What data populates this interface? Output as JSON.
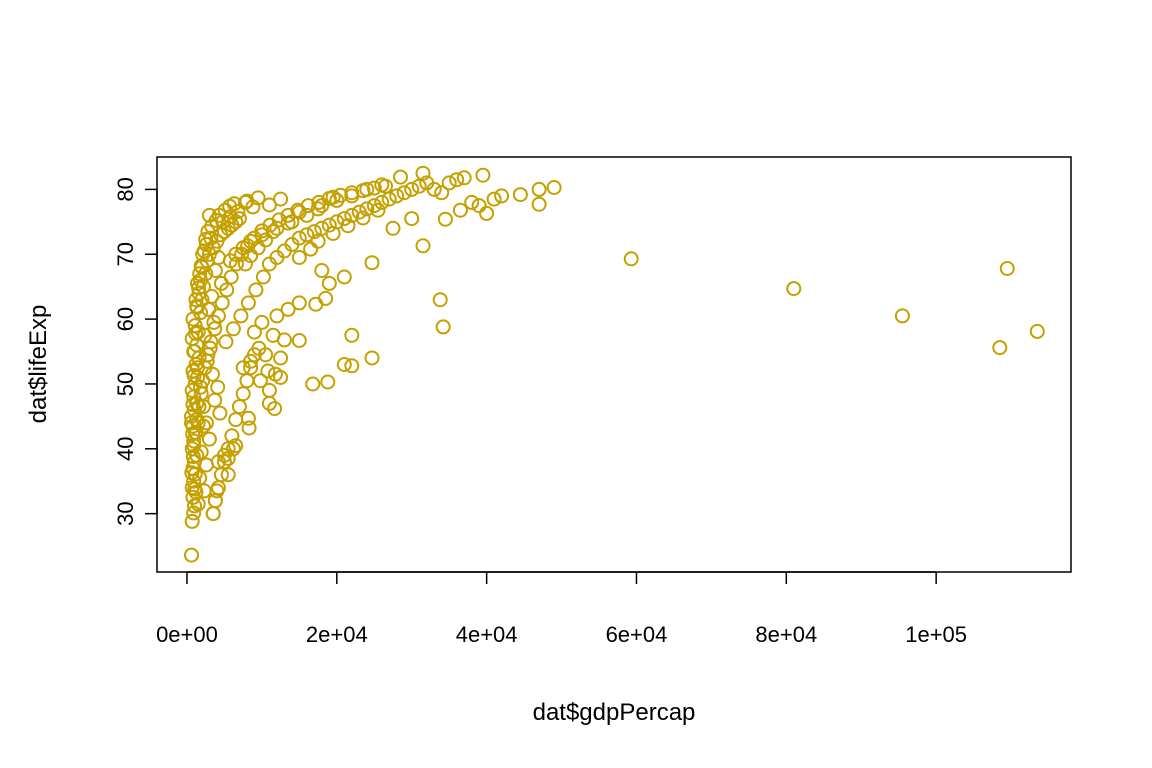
{
  "chart_data": {
    "type": "scatter",
    "title": "",
    "xlabel": "dat$gdpPercap",
    "ylabel": "dat$lifeExp",
    "xlim": [
      -4000,
      118000
    ],
    "ylim": [
      21,
      85
    ],
    "grid": false,
    "legend": "none",
    "color": "#C4A000",
    "x_ticks": [
      {
        "value": 0,
        "label": "0e+00"
      },
      {
        "value": 20000,
        "label": "2e+04"
      },
      {
        "value": 40000,
        "label": "4e+04"
      },
      {
        "value": 60000,
        "label": "6e+04"
      },
      {
        "value": 80000,
        "label": "8e+04"
      },
      {
        "value": 100000,
        "label": "1e+05"
      }
    ],
    "y_ticks": [
      {
        "value": 30,
        "label": "30"
      },
      {
        "value": 40,
        "label": "40"
      },
      {
        "value": 50,
        "label": "50"
      },
      {
        "value": 60,
        "label": "60"
      },
      {
        "value": 70,
        "label": "70"
      },
      {
        "value": 80,
        "label": "80"
      }
    ],
    "points": [
      [
        600,
        23.6
      ],
      [
        700,
        28.8
      ],
      [
        900,
        30.1
      ],
      [
        1000,
        31.2
      ],
      [
        800,
        32.5
      ],
      [
        1200,
        33.3
      ],
      [
        700,
        34.0
      ],
      [
        900,
        35.0
      ],
      [
        1100,
        36.1
      ],
      [
        800,
        37.0
      ],
      [
        1000,
        38.0
      ],
      [
        1300,
        39.0
      ],
      [
        700,
        40.0
      ],
      [
        900,
        41.2
      ],
      [
        1200,
        42.5
      ],
      [
        800,
        43.5
      ],
      [
        1500,
        44.0
      ],
      [
        600,
        45.0
      ],
      [
        1000,
        46.0
      ],
      [
        1300,
        47.0
      ],
      [
        900,
        48.0
      ],
      [
        700,
        49.0
      ],
      [
        1100,
        50.0
      ],
      [
        1400,
        51.0
      ],
      [
        800,
        52.0
      ],
      [
        1200,
        53.0
      ],
      [
        1600,
        54.0
      ],
      [
        900,
        55.0
      ],
      [
        1300,
        56.0
      ],
      [
        700,
        57.0
      ],
      [
        1500,
        58.0
      ],
      [
        1100,
        59.0
      ],
      [
        800,
        60.0
      ],
      [
        1800,
        61.0
      ],
      [
        1300,
        62.0
      ],
      [
        2000,
        63.0
      ],
      [
        1600,
        64.0
      ],
      [
        2200,
        65.0
      ],
      [
        1800,
        66.0
      ],
      [
        2500,
        67.0
      ],
      [
        2000,
        68.0
      ],
      [
        2700,
        69.0
      ],
      [
        3000,
        70.0
      ],
      [
        2300,
        70.5
      ],
      [
        3500,
        71.0
      ],
      [
        2600,
        71.5
      ],
      [
        4000,
        72.0
      ],
      [
        3200,
        72.5
      ],
      [
        4500,
        73.0
      ],
      [
        5000,
        73.5
      ],
      [
        5500,
        74.0
      ],
      [
        6000,
        74.5
      ],
      [
        6500,
        75.0
      ],
      [
        7000,
        75.5
      ],
      [
        3000,
        76.0
      ],
      [
        4200,
        69.5
      ],
      [
        3800,
        67.5
      ],
      [
        4600,
        65.5
      ],
      [
        3300,
        63.5
      ],
      [
        2900,
        61.5
      ],
      [
        3600,
        59.5
      ],
      [
        2400,
        57.5
      ],
      [
        3100,
        55.5
      ],
      [
        2700,
        53.5
      ],
      [
        3400,
        51.5
      ],
      [
        4100,
        49.5
      ],
      [
        3700,
        47.5
      ],
      [
        4400,
        45.5
      ],
      [
        2200,
        43.5
      ],
      [
        3000,
        41.5
      ],
      [
        1900,
        39.5
      ],
      [
        2600,
        37.5
      ],
      [
        1700,
        35.5
      ],
      [
        2300,
        33.5
      ],
      [
        1500,
        31.5
      ],
      [
        3500,
        30.0
      ],
      [
        3800,
        32.0
      ],
      [
        4200,
        34.0
      ],
      [
        4600,
        36.0
      ],
      [
        5000,
        38.0
      ],
      [
        5500,
        40.0
      ],
      [
        6000,
        42.0
      ],
      [
        6500,
        44.5
      ],
      [
        7000,
        46.5
      ],
      [
        7500,
        48.5
      ],
      [
        8000,
        50.5
      ],
      [
        8500,
        52.5
      ],
      [
        9000,
        54.5
      ],
      [
        5200,
        56.5
      ],
      [
        6200,
        58.5
      ],
      [
        7200,
        60.5
      ],
      [
        8200,
        62.5
      ],
      [
        9200,
        64.5
      ],
      [
        10200,
        66.5
      ],
      [
        11000,
        68.5
      ],
      [
        12000,
        69.5
      ],
      [
        13000,
        70.5
      ],
      [
        14000,
        71.5
      ],
      [
        15000,
        72.5
      ],
      [
        16000,
        73.0
      ],
      [
        17000,
        73.5
      ],
      [
        18000,
        74.0
      ],
      [
        19000,
        74.5
      ],
      [
        20000,
        75.0
      ],
      [
        21000,
        75.5
      ],
      [
        22000,
        76.0
      ],
      [
        23000,
        76.5
      ],
      [
        24000,
        77.0
      ],
      [
        25000,
        77.5
      ],
      [
        26000,
        78.0
      ],
      [
        27000,
        78.5
      ],
      [
        28000,
        79.0
      ],
      [
        29000,
        79.5
      ],
      [
        30000,
        80.0
      ],
      [
        31000,
        80.5
      ],
      [
        32000,
        81.0
      ],
      [
        33000,
        80.0
      ],
      [
        34000,
        79.5
      ],
      [
        35000,
        81.0
      ],
      [
        36000,
        81.5
      ],
      [
        37000,
        81.8
      ],
      [
        38000,
        78.0
      ],
      [
        39000,
        77.5
      ],
      [
        40000,
        76.3
      ],
      [
        41000,
        78.5
      ],
      [
        42000,
        79.0
      ],
      [
        44500,
        79.2
      ],
      [
        47000,
        80.0
      ],
      [
        47000,
        77.7
      ],
      [
        49000,
        80.3
      ],
      [
        39500,
        82.2
      ],
      [
        31500,
        82.5
      ],
      [
        28500,
        81.9
      ],
      [
        26000,
        80.7
      ],
      [
        24000,
        80.0
      ],
      [
        22000,
        79.0
      ],
      [
        20000,
        78.3
      ],
      [
        18000,
        77.5
      ],
      [
        16000,
        76.0
      ],
      [
        14000,
        75.0
      ],
      [
        12000,
        74.0
      ],
      [
        10000,
        73.0
      ],
      [
        8500,
        72.0
      ],
      [
        7500,
        71.0
      ],
      [
        6500,
        70.0
      ],
      [
        5800,
        69.0
      ],
      [
        9500,
        78.7
      ],
      [
        8800,
        77.3
      ],
      [
        7800,
        78.0
      ],
      [
        6800,
        76.6
      ],
      [
        5800,
        75.8
      ],
      [
        4800,
        75.0
      ],
      [
        12500,
        78.5
      ],
      [
        11000,
        77.6
      ],
      [
        17500,
        77.0
      ],
      [
        19500,
        78.8
      ],
      [
        15000,
        76.5
      ],
      [
        13500,
        74.8
      ],
      [
        11500,
        73.5
      ],
      [
        10500,
        72.2
      ],
      [
        9500,
        71.0
      ],
      [
        8500,
        69.8
      ],
      [
        7800,
        68.5
      ],
      [
        30000,
        75.5
      ],
      [
        27500,
        74.0
      ],
      [
        25500,
        76.8
      ],
      [
        23500,
        75.6
      ],
      [
        21500,
        74.4
      ],
      [
        19500,
        73.2
      ],
      [
        17500,
        72.0
      ],
      [
        16500,
        70.8
      ],
      [
        15000,
        69.5
      ],
      [
        36500,
        76.8
      ],
      [
        34500,
        75.4
      ],
      [
        31500,
        71.3
      ],
      [
        24700,
        68.7
      ],
      [
        18000,
        67.5
      ],
      [
        21000,
        66.5
      ],
      [
        19000,
        65.5
      ],
      [
        17200,
        62.3
      ],
      [
        18500,
        63.2
      ],
      [
        15000,
        62.5
      ],
      [
        13500,
        61.5
      ],
      [
        12000,
        60.5
      ],
      [
        10000,
        59.5
      ],
      [
        9000,
        58.0
      ],
      [
        11500,
        57.5
      ],
      [
        13000,
        56.8
      ],
      [
        15000,
        56.7
      ],
      [
        22000,
        57.5
      ],
      [
        33800,
        63.0
      ],
      [
        34200,
        58.8
      ],
      [
        24700,
        54.0
      ],
      [
        21000,
        53.0
      ],
      [
        22000,
        52.8
      ],
      [
        18800,
        50.3
      ],
      [
        16800,
        50.0
      ],
      [
        12500,
        51.0
      ],
      [
        11800,
        51.5
      ],
      [
        11000,
        49.0
      ],
      [
        11000,
        47.0
      ],
      [
        11700,
        46.2
      ],
      [
        8200,
        44.7
      ],
      [
        8300,
        43.2
      ],
      [
        6500,
        40.5
      ],
      [
        6200,
        40.0
      ],
      [
        5000,
        39.0
      ],
      [
        5500,
        38.5
      ],
      [
        4200,
        38.0
      ],
      [
        5500,
        36.0
      ],
      [
        4000,
        33.5
      ],
      [
        3800,
        32.0
      ],
      [
        3500,
        30.0
      ],
      [
        9600,
        55.5
      ],
      [
        10500,
        54.5
      ],
      [
        8500,
        53.5
      ],
      [
        7500,
        52.5
      ],
      [
        12500,
        54.0
      ],
      [
        10800,
        52.0
      ],
      [
        9800,
        50.5
      ],
      [
        59300,
        69.3
      ],
      [
        81000,
        64.7
      ],
      [
        95500,
        60.5
      ],
      [
        108500,
        55.6
      ],
      [
        109500,
        67.8
      ],
      [
        113500,
        58.1
      ],
      [
        1400,
        65.5
      ],
      [
        1700,
        67.0
      ],
      [
        1200,
        63.0
      ],
      [
        2100,
        70.0
      ],
      [
        2500,
        72.3
      ],
      [
        1900,
        68.2
      ],
      [
        2800,
        73.5
      ],
      [
        3300,
        74.3
      ],
      [
        3900,
        75.2
      ],
      [
        4300,
        76.0
      ],
      [
        5100,
        76.8
      ],
      [
        5700,
        77.4
      ],
      [
        6300,
        77.8
      ],
      [
        8000,
        78.2
      ],
      [
        1000,
        55.0
      ],
      [
        1400,
        52.5
      ],
      [
        1800,
        49.5
      ],
      [
        2200,
        46.5
      ],
      [
        2600,
        44.0
      ],
      [
        900,
        40.5
      ],
      [
        1100,
        42.5
      ],
      [
        1300,
        44.5
      ],
      [
        1600,
        46.5
      ],
      [
        1900,
        48.5
      ],
      [
        2100,
        50.5
      ],
      [
        2400,
        52.5
      ],
      [
        2800,
        54.5
      ],
      [
        3200,
        56.5
      ],
      [
        3700,
        58.5
      ],
      [
        4200,
        60.5
      ],
      [
        4700,
        62.5
      ],
      [
        5300,
        64.5
      ],
      [
        5900,
        66.5
      ],
      [
        6600,
        68.5
      ],
      [
        7300,
        70.0
      ],
      [
        8100,
        71.3
      ],
      [
        9000,
        72.5
      ],
      [
        10000,
        73.6
      ],
      [
        11100,
        74.5
      ],
      [
        12300,
        75.3
      ],
      [
        13500,
        76.0
      ],
      [
        14800,
        76.8
      ],
      [
        16200,
        77.5
      ],
      [
        17600,
        78.0
      ],
      [
        19000,
        78.6
      ],
      [
        20500,
        79.1
      ],
      [
        22000,
        79.5
      ],
      [
        23500,
        79.8
      ],
      [
        25000,
        80.2
      ],
      [
        26500,
        80.5
      ],
      [
        800,
        46.8
      ],
      [
        950,
        51.3
      ],
      [
        1150,
        57.8
      ],
      [
        1350,
        61.8
      ],
      [
        1550,
        64.8
      ],
      [
        750,
        42.3
      ],
      [
        850,
        38.8
      ],
      [
        650,
        36.3
      ],
      [
        1050,
        33.8
      ],
      [
        600,
        44.0
      ]
    ]
  }
}
